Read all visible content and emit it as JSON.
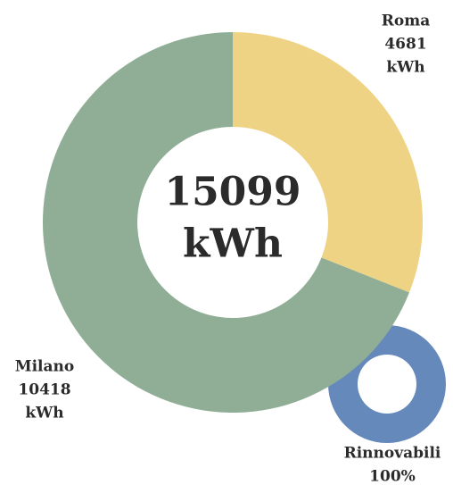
{
  "chart_data": [
    {
      "type": "donut",
      "categories": [
        "Roma",
        "Milano"
      ],
      "values": [
        4681,
        10418
      ],
      "colors": [
        "#efd385",
        "#8fae95"
      ],
      "total": 15099,
      "unit": "kWh"
    },
    {
      "type": "donut",
      "categories": [
        "Rinnovabili"
      ],
      "values": [
        100
      ],
      "value_labels": [
        "100%"
      ],
      "colors": [
        "#6689bb"
      ]
    }
  ]
}
